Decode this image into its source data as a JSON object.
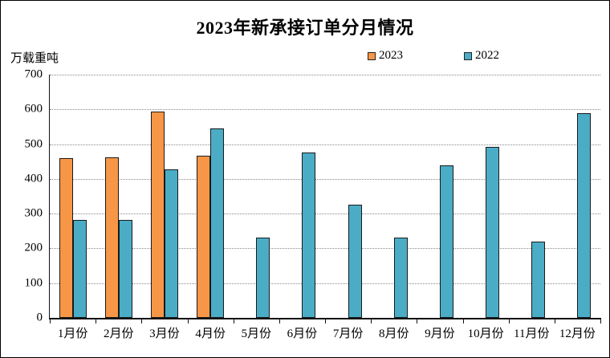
{
  "chart_data": {
    "type": "bar",
    "title": "2023年新承接订单分月情况",
    "ylabel": "万载重吨",
    "categories": [
      "1月份",
      "2月份",
      "3月份",
      "4月份",
      "5月份",
      "6月份",
      "7月份",
      "8月份",
      "9月份",
      "10月份",
      "11月份",
      "12月份"
    ],
    "series": [
      {
        "name": "2023",
        "color": "#F79646",
        "values": [
          460,
          462,
          594,
          467,
          null,
          null,
          null,
          null,
          null,
          null,
          null,
          null
        ]
      },
      {
        "name": "2022",
        "color": "#4BACC6",
        "values": [
          281,
          283,
          428,
          546,
          230,
          475,
          325,
          232,
          440,
          492,
          220,
          590
        ]
      }
    ],
    "ylim": [
      0,
      700
    ],
    "ytick_interval": 100,
    "grid": "horizontal-dotted",
    "legend_position": "top-center",
    "bar_border_color": "#1a1a1a",
    "axis_color": "#111111"
  }
}
